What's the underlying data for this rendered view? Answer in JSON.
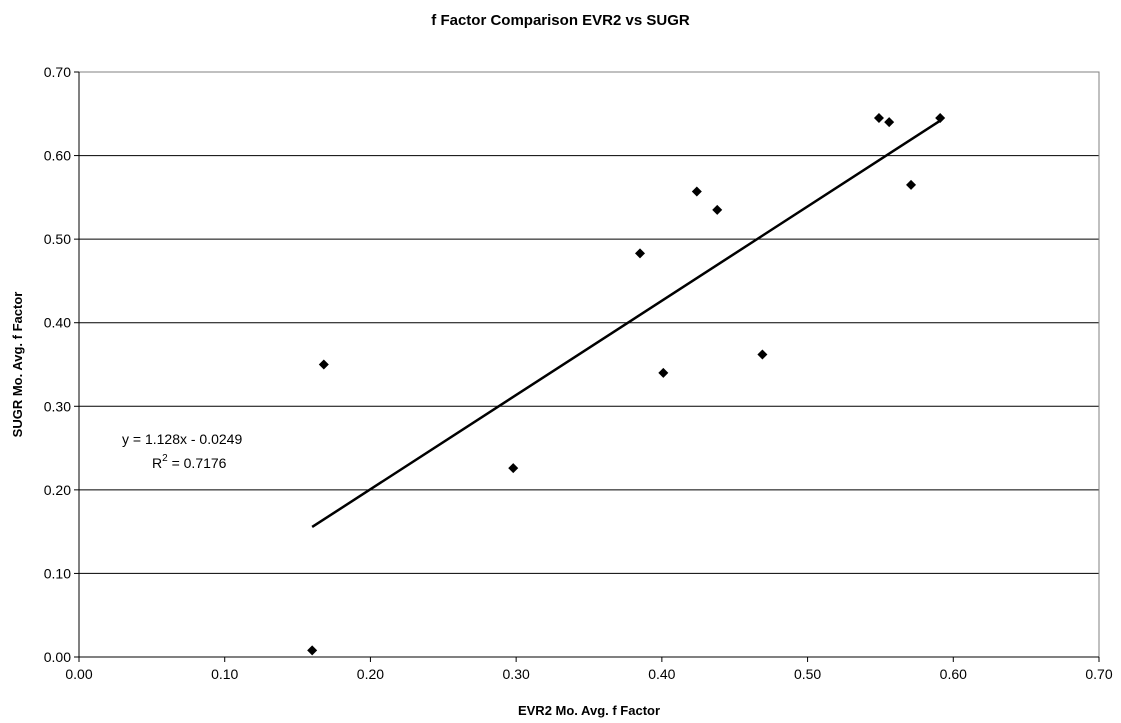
{
  "chart_data": {
    "type": "scatter",
    "title": "f Factor Comparison EVR2 vs SUGR",
    "xlabel": "EVR2 Mo. Avg. f Factor",
    "ylabel": "SUGR Mo. Avg. f Factor",
    "xlim": [
      0.0,
      0.7
    ],
    "ylim": [
      0.0,
      0.7
    ],
    "x_ticks": [
      "0.00",
      "0.10",
      "0.20",
      "0.30",
      "0.40",
      "0.50",
      "0.60",
      "0.70"
    ],
    "y_ticks": [
      "0.00",
      "0.10",
      "0.20",
      "0.30",
      "0.40",
      "0.50",
      "0.60",
      "0.70"
    ],
    "x_tick_values": [
      0.0,
      0.1,
      0.2,
      0.3,
      0.4,
      0.5,
      0.6,
      0.7
    ],
    "y_tick_values": [
      0.0,
      0.1,
      0.2,
      0.3,
      0.4,
      0.5,
      0.6,
      0.7
    ],
    "grid": "horizontal",
    "legend": "none",
    "marker": "diamond",
    "marker_color": "#000000",
    "series": [
      {
        "x": [
          0.16,
          0.168,
          0.298,
          0.385,
          0.401,
          0.424,
          0.438,
          0.469,
          0.549,
          0.556,
          0.571,
          0.591
        ],
        "y": [
          0.008,
          0.35,
          0.226,
          0.483,
          0.34,
          0.557,
          0.535,
          0.362,
          0.645,
          0.64,
          0.565,
          0.645
        ]
      }
    ],
    "trendline": {
      "type": "linear",
      "slope": 1.128,
      "intercept": -0.0249,
      "x_range": [
        0.16,
        0.591
      ],
      "equation_text": "y = 1.128x - 0.0249",
      "r2_label": "R",
      "r2_sup": "2",
      "r2_value_text": " = 0.7176"
    }
  }
}
